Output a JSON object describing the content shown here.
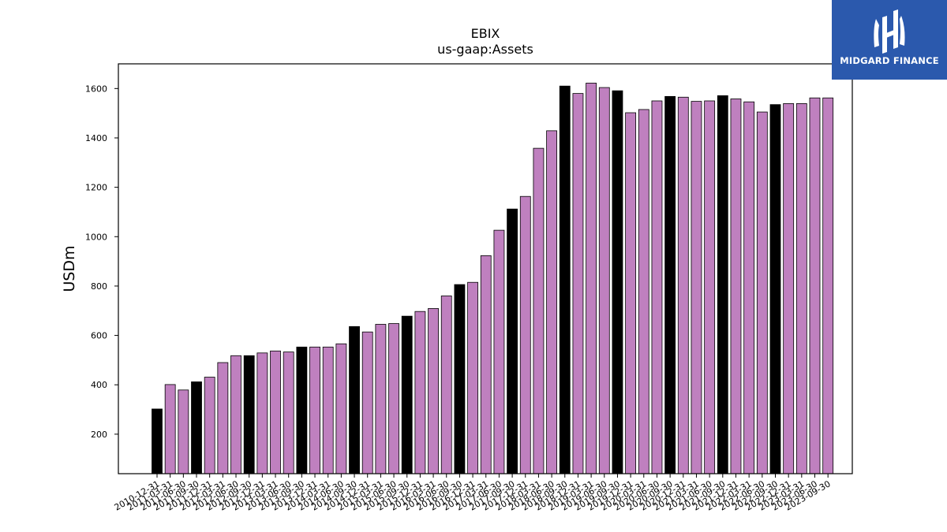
{
  "chart_data": {
    "type": "bar",
    "title": "EBIX",
    "subtitle": "us-gaap:Assets",
    "ylabel": "USDm",
    "xlabel": "",
    "ylim": [
      40,
      1700
    ],
    "yticks": [
      200,
      400,
      600,
      800,
      1000,
      1200,
      1400,
      1600
    ],
    "grid": false,
    "colors": {
      "quarter": "#bf80bf",
      "year_end": "#000000",
      "edge": "#000000"
    },
    "categories": [
      "2010-12-31",
      "2011-03-31",
      "2011-06-30",
      "2011-09-30",
      "2011-12-31",
      "2012-03-31",
      "2012-06-30",
      "2012-09-30",
      "2012-12-31",
      "2013-03-31",
      "2013-06-30",
      "2013-09-30",
      "2013-12-31",
      "2014-03-31",
      "2014-06-30",
      "2014-09-30",
      "2014-12-31",
      "2015-03-31",
      "2015-06-30",
      "2015-09-30",
      "2015-12-31",
      "2016-03-31",
      "2016-06-30",
      "2016-09-30",
      "2016-12-31",
      "2017-03-31",
      "2017-06-30",
      "2017-09-30",
      "2017-12-31",
      "2018-03-31",
      "2018-06-30",
      "2018-09-30",
      "2018-12-31",
      "2019-03-31",
      "2019-06-30",
      "2019-09-30",
      "2019-12-31",
      "2020-03-31",
      "2020-06-30",
      "2020-09-30",
      "2020-12-31",
      "2021-03-31",
      "2021-06-30",
      "2021-09-30",
      "2021-12-31",
      "2022-03-31",
      "2022-06-30",
      "2022-09-30",
      "2022-12-31",
      "2023-03-31",
      "2023-06-30",
      "2023-09-30"
    ],
    "values": [
      302,
      401,
      379,
      412,
      431,
      490,
      518,
      518,
      529,
      537,
      533,
      553,
      553,
      553,
      566,
      636,
      614,
      645,
      648,
      678,
      697,
      709,
      760,
      806,
      815,
      923,
      1026,
      1112,
      1163,
      1358,
      1429,
      1610,
      1580,
      1622,
      1604,
      1591,
      1502,
      1515,
      1550,
      1568,
      1565,
      1548,
      1550,
      1571,
      1558,
      1546,
      1505,
      1535,
      1539,
      1539,
      1562,
      1562
    ],
    "highlighted": [
      "2010-12-31",
      "2011-09-30",
      "2012-09-30",
      "2013-09-30",
      "2014-09-30",
      "2015-09-30",
      "2016-09-30",
      "2017-09-30",
      "2018-09-30",
      "2019-09-30",
      "2020-09-30",
      "2021-09-30",
      "2022-09-30"
    ]
  },
  "logo": {
    "text": "MIDGARD FINANCE",
    "background": "#2b59ad"
  }
}
